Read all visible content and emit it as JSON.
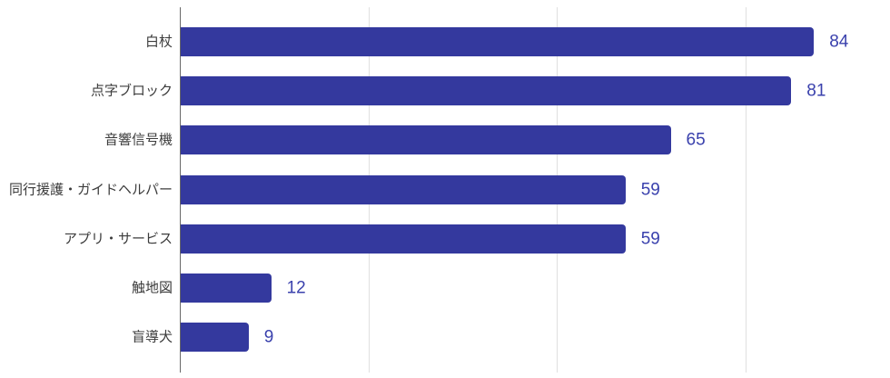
{
  "chart_data": {
    "type": "bar",
    "orientation": "horizontal",
    "title": "",
    "xlabel": "",
    "ylabel": "",
    "categories": [
      "白杖",
      "点字ブロック",
      "音響信号機",
      "同行援護・ガイドヘルパー",
      "アプリ・サービス",
      "触地図",
      "盲導犬"
    ],
    "values": [
      84,
      81,
      65,
      59,
      59,
      12,
      9
    ],
    "xlim": [
      0,
      94
    ],
    "gridlines_x": [
      25,
      50,
      75
    ],
    "grid_on": true,
    "legend_position": "none",
    "value_labels_shown": true,
    "colors": {
      "bar": "#34399e",
      "value_label": "#3a41ad",
      "category_label": "#3c3c3c",
      "axis_line": "#696969",
      "gridline": "#e0e0e0",
      "background": "#ffffff"
    }
  }
}
